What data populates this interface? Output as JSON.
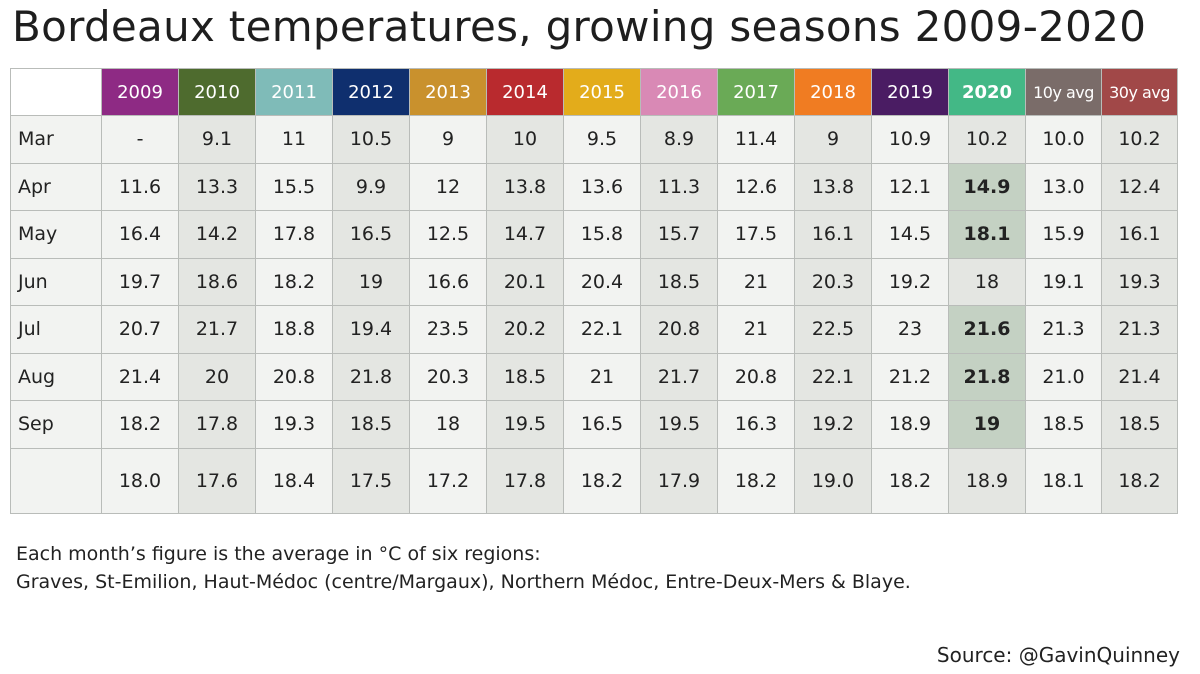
{
  "title": "Bordeaux temperatures, growing seasons 2009-2020",
  "chart_data": {
    "type": "table",
    "columns": [
      {
        "label": "2009",
        "color": "#8e2a84"
      },
      {
        "label": "2010",
        "color": "#4e6b2e"
      },
      {
        "label": "2011",
        "color": "#7fbbb8"
      },
      {
        "label": "2012",
        "color": "#0f2f6e"
      },
      {
        "label": "2013",
        "color": "#c9912d"
      },
      {
        "label": "2014",
        "color": "#b92a2e"
      },
      {
        "label": "2015",
        "color": "#e3ac1b"
      },
      {
        "label": "2016",
        "color": "#d989b5"
      },
      {
        "label": "2017",
        "color": "#6aaa56"
      },
      {
        "label": "2018",
        "color": "#f07c22"
      },
      {
        "label": "2019",
        "color": "#4a1c63"
      },
      {
        "label": "2020",
        "color": "#43b886"
      },
      {
        "label": "10y avg",
        "color": "#7a6c69"
      },
      {
        "label": "30y avg",
        "color": "#a14848"
      }
    ],
    "rows": [
      {
        "label": "Mar",
        "values": [
          "-",
          "9.1",
          "11",
          "10.5",
          "9",
          "10",
          "9.5",
          "8.9",
          "11.4",
          "9",
          "10.9",
          "10.2",
          "10.0",
          "10.2"
        ],
        "highlight_2020": false
      },
      {
        "label": "Apr",
        "values": [
          "11.6",
          "13.3",
          "15.5",
          "9.9",
          "12",
          "13.8",
          "13.6",
          "11.3",
          "12.6",
          "13.8",
          "12.1",
          "14.9",
          "13.0",
          "12.4"
        ],
        "highlight_2020": true
      },
      {
        "label": "May",
        "values": [
          "16.4",
          "14.2",
          "17.8",
          "16.5",
          "12.5",
          "14.7",
          "15.8",
          "15.7",
          "17.5",
          "16.1",
          "14.5",
          "18.1",
          "15.9",
          "16.1"
        ],
        "highlight_2020": true
      },
      {
        "label": "Jun",
        "values": [
          "19.7",
          "18.6",
          "18.2",
          "19",
          "16.6",
          "20.1",
          "20.4",
          "18.5",
          "21",
          "20.3",
          "19.2",
          "18",
          "19.1",
          "19.3"
        ],
        "highlight_2020": false
      },
      {
        "label": "Jul",
        "values": [
          "20.7",
          "21.7",
          "18.8",
          "19.4",
          "23.5",
          "20.2",
          "22.1",
          "20.8",
          "21",
          "22.5",
          "23",
          "21.6",
          "21.3",
          "21.3"
        ],
        "highlight_2020": true
      },
      {
        "label": "Aug",
        "values": [
          "21.4",
          "20",
          "20.8",
          "21.8",
          "20.3",
          "18.5",
          "21",
          "21.7",
          "20.8",
          "22.1",
          "21.2",
          "21.8",
          "21.0",
          "21.4"
        ],
        "highlight_2020": true
      },
      {
        "label": "Sep",
        "values": [
          "18.2",
          "17.8",
          "19.3",
          "18.5",
          "18",
          "19.5",
          "16.5",
          "19.5",
          "16.3",
          "19.2",
          "18.9",
          "19",
          "18.5",
          "18.5"
        ],
        "highlight_2020": true
      },
      {
        "label": "",
        "values": [
          "18.0",
          "17.6",
          "18.4",
          "17.5",
          "17.2",
          "17.8",
          "18.2",
          "17.9",
          "18.2",
          "19.0",
          "18.2",
          "18.9",
          "18.1",
          "18.2"
        ],
        "highlight_2020": false
      }
    ]
  },
  "note": {
    "line1": "Each month’s figure is the average in °C of six regions:",
    "line2": "Graves, St-Emilion, Haut-Médoc (centre/Margaux), Northern Médoc, Entre-Deux-Mers & Blaye."
  },
  "source": "Source: @GavinQuinney"
}
